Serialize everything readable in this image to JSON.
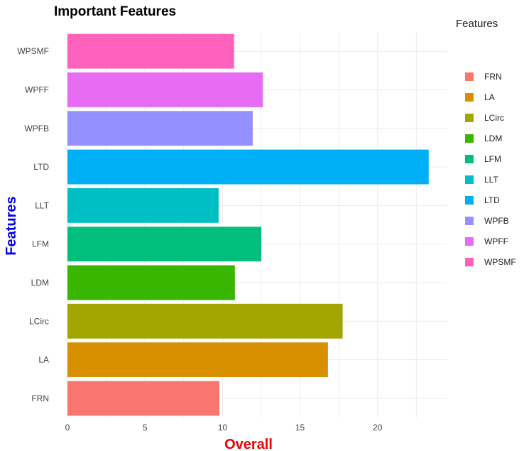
{
  "chart_data": {
    "type": "bar",
    "orientation": "horizontal",
    "title": "Important Features",
    "xlabel": "Overall",
    "ylabel": "Features",
    "legend_title": "Features",
    "legend_position": "right",
    "grid": true,
    "xlim": [
      0,
      24.5
    ],
    "xticks": [
      0,
      5,
      10,
      15,
      20
    ],
    "categories": [
      "FRN",
      "LA",
      "LCirc",
      "LDM",
      "LFM",
      "LLT",
      "LTD",
      "WPFB",
      "WPFF",
      "WPSMF"
    ],
    "values": [
      9.8,
      16.8,
      17.75,
      10.8,
      12.5,
      9.75,
      23.3,
      11.95,
      12.6,
      10.75
    ],
    "colors": [
      "#F8766D",
      "#D89000",
      "#A3A500",
      "#39B600",
      "#00BF7D",
      "#00BFC4",
      "#00B0F6",
      "#9590FF",
      "#E76BF3",
      "#FF62BC"
    ]
  }
}
